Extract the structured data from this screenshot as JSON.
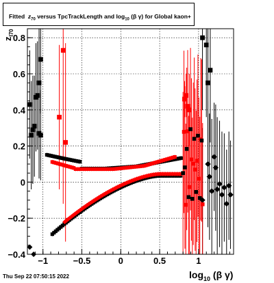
{
  "title": {
    "prefix": "Fitted",
    "z": "z",
    "z_sub": "70",
    "middle": "versus TpcTrackLength and log",
    "log_sub": "10",
    "end": "(β  γ) for Global kaon+"
  },
  "footer": "Thu Sep 22 07:50:15 2022",
  "xlabel": {
    "main": "log",
    "sub": "10",
    "rest": "(β γ)"
  },
  "ylabel": {
    "main": "z",
    "sub": "I70"
  },
  "chart_data": {
    "type": "scatter",
    "xlim": [
      -1.2,
      1.45
    ],
    "ylim": [
      -0.4,
      0.85
    ],
    "x_ticks": [
      -1,
      -0.5,
      0,
      0.5,
      1
    ],
    "x_tick_labels": [
      "−1",
      "−0.5",
      "0",
      "0.5",
      "1"
    ],
    "y_ticks": [
      -0.4,
      -0.2,
      0,
      0.2,
      0.4,
      0.6,
      0.8
    ],
    "y_tick_labels": [
      "−0.4",
      "−0.2",
      "0",
      "0.2",
      "0.4",
      "0.6",
      "0.8"
    ],
    "grid": true,
    "series": [
      {
        "color": "#000000",
        "marker": "square",
        "points": [
          [
            -1.17,
            0.43,
            0.3
          ],
          [
            -1.15,
            0.26,
            0.3
          ],
          [
            -1.13,
            0.29,
            0.3
          ],
          [
            -1.11,
            0.31,
            0.28
          ],
          [
            -1.09,
            0.47,
            0.3
          ],
          [
            -1.07,
            0.48,
            0.3
          ],
          [
            -1.05,
            0.55,
            0.3
          ],
          [
            -1.03,
            0.68,
            0.3
          ],
          [
            -1.05,
            0.27,
            0.25
          ],
          [
            -1.03,
            0.26,
            0.25
          ],
          [
            1.05,
            0.8,
            0.4
          ],
          [
            1.1,
            0.76,
            0.4
          ],
          [
            1.15,
            0.62,
            0.4
          ],
          [
            1.12,
            0.55,
            0.4
          ]
        ]
      },
      {
        "color": "#ff0000",
        "marker": "square",
        "points": [
          [
            -0.74,
            0.73,
            0.85
          ],
          [
            -0.79,
            0.36,
            0.4
          ],
          [
            -0.71,
            0.22,
            0.55
          ],
          [
            0.82,
            0.46,
            0.1
          ],
          [
            0.84,
            0.48,
            0.12
          ],
          [
            0.86,
            0.42,
            0.15
          ],
          [
            0.88,
            0.4,
            0.2
          ]
        ]
      },
      {
        "color": "#000000",
        "marker": "diamond",
        "points": [
          [
            1.12,
            0.1,
            0.35
          ],
          [
            1.14,
            0.03,
            0.35
          ],
          [
            1.17,
            -0.05,
            0.4
          ],
          [
            1.2,
            0.14,
            0.3
          ],
          [
            1.22,
            0.08,
            0.35
          ],
          [
            1.24,
            -0.04,
            0.4
          ],
          [
            1.27,
            -0.01,
            0.35
          ],
          [
            1.3,
            -0.07,
            0.35
          ],
          [
            1.33,
            -0.03,
            0.3
          ],
          [
            1.36,
            -0.12,
            0.3
          ],
          [
            1.39,
            -0.02,
            0.3
          ],
          [
            1.41,
            -0.07,
            0.3
          ],
          [
            1.05,
            -0.1,
            0.4
          ]
        ]
      }
    ]
  }
}
